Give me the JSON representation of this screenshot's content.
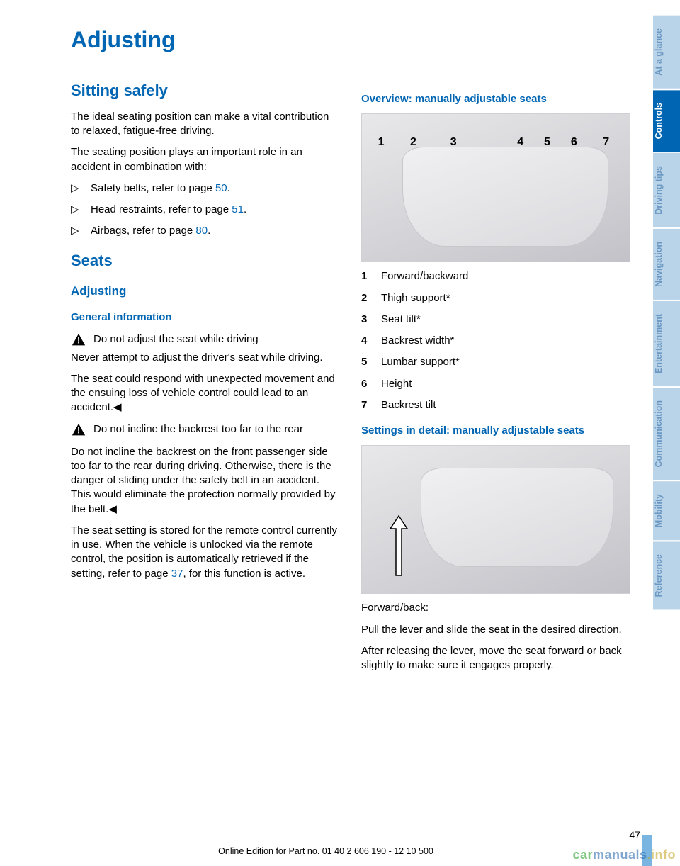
{
  "colors": {
    "brand_blue": "#0066b3",
    "light_blue": "#b9d3e9",
    "mid_blue": "#7ab4e0",
    "text": "#000000"
  },
  "page_title": "Adjusting",
  "left": {
    "h2_sitting": "Sitting safely",
    "p1": "The ideal seating position can make a vital con­tribution to relaxed, fatigue-free driving.",
    "p2": "The seating position plays an important role in an accident in combination with:",
    "bullets": [
      {
        "pre": "Safety belts, refer to page ",
        "link": "50",
        "post": "."
      },
      {
        "pre": "Head restraints, refer to page ",
        "link": "51",
        "post": "."
      },
      {
        "pre": "Airbags, refer to page ",
        "link": "80",
        "post": "."
      }
    ],
    "h2_seats": "Seats",
    "h3_adjusting": "Adjusting",
    "h4_general": "General information",
    "warn1_title": "Do not adjust the seat while driving",
    "warn1_body1": "Never attempt to adjust the driver's seat while driving.",
    "warn1_body2": "The seat could respond with unexpected move­ment and the ensuing loss of vehicle control could lead to an accident.◀",
    "warn2_title": "Do not incline the backrest too far to the rear",
    "warn2_body": "Do not incline the backrest on the front passen­ger side too far to the rear during driving. Oth­erwise, there is the danger of sliding under the safety belt in an accident. This would eliminate the protection normally provided by the belt.◀",
    "remote_pre": "The seat setting is stored for the remote control currently in use. When the vehicle is unlocked via the remote control, the position is automati­cally retrieved if the setting, refer to page ",
    "remote_link": "37",
    "remote_post": ", for this function is active."
  },
  "right": {
    "h4_overview": "Overview: manually adjustable seats",
    "overview_labels": [
      "1",
      "2",
      "3",
      "4",
      "5",
      "6",
      "7"
    ],
    "legend": [
      {
        "n": "1",
        "t": "Forward/backward"
      },
      {
        "n": "2",
        "t": "Thigh support*"
      },
      {
        "n": "3",
        "t": "Seat tilt*"
      },
      {
        "n": "4",
        "t": "Backrest width*"
      },
      {
        "n": "5",
        "t": "Lumbar support*"
      },
      {
        "n": "6",
        "t": "Height"
      },
      {
        "n": "7",
        "t": "Backrest tilt"
      }
    ],
    "h4_detail": "Settings in detail: manually adjustable seats",
    "fb_title": "Forward/back:",
    "fb_p1": "Pull the lever and slide the seat in the desired direction.",
    "fb_p2": "After releasing the lever, move the seat forward or back slightly to make sure it engages prop­erly."
  },
  "tabs": [
    {
      "label": "At a glance",
      "bg": "#b9d3e9",
      "fg": "#6b98c2"
    },
    {
      "label": "Controls",
      "bg": "#0066b3",
      "fg": "#ffffff"
    },
    {
      "label": "Driving tips",
      "bg": "#b9d3e9",
      "fg": "#6b98c2"
    },
    {
      "label": "Navigation",
      "bg": "#b9d3e9",
      "fg": "#6b98c2"
    },
    {
      "label": "Entertainment",
      "bg": "#b9d3e9",
      "fg": "#6b98c2"
    },
    {
      "label": "Communication",
      "bg": "#b9d3e9",
      "fg": "#6b98c2"
    },
    {
      "label": "Mobility",
      "bg": "#b9d3e9",
      "fg": "#6b98c2"
    },
    {
      "label": "Reference",
      "bg": "#b9d3e9",
      "fg": "#6b98c2"
    }
  ],
  "page_number": "47",
  "footer": "Online Edition for Part no. 01 40 2 606 190 - 12 10 500",
  "watermark": {
    "a": "car",
    "b": "manuals",
    "c": ".info"
  }
}
